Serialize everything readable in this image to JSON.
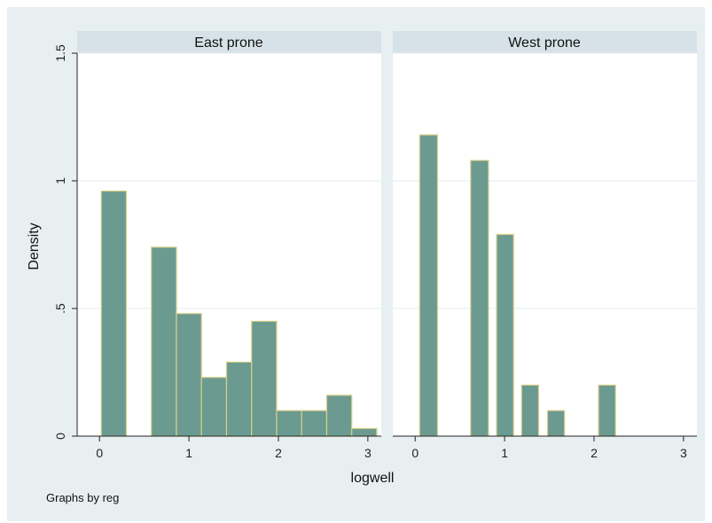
{
  "chart_data": {
    "type": "bar",
    "ylabel": "Density",
    "xlabel": "logwell",
    "note": "Graphs by reg",
    "xlim": [
      -0.25,
      3.15
    ],
    "ylim": [
      0,
      1.5
    ],
    "xticks": [
      "0",
      "1",
      "2",
      "3"
    ],
    "xtick_values": [
      0,
      1,
      2,
      3
    ],
    "yticks": [
      "0",
      ".5",
      "1",
      "1.5"
    ],
    "ytick_values": [
      0,
      0.5,
      1,
      1.5
    ],
    "grid": true,
    "colors": {
      "bar_fill": "#6b9a91",
      "bar_edge": "#d8d08a",
      "outer_bg": "#e8eff1",
      "strip": "#d6e2e8",
      "gridline": "#e6ecee"
    },
    "panels": [
      {
        "title": "East prone",
        "bins": [
          {
            "x0": 0.02,
            "x1": 0.3,
            "density": 0.96
          },
          {
            "x0": 0.58,
            "x1": 0.86,
            "density": 0.74
          },
          {
            "x0": 0.86,
            "x1": 1.14,
            "density": 0.48
          },
          {
            "x0": 1.14,
            "x1": 1.42,
            "density": 0.23
          },
          {
            "x0": 1.42,
            "x1": 1.7,
            "density": 0.29
          },
          {
            "x0": 1.7,
            "x1": 1.98,
            "density": 0.45
          },
          {
            "x0": 1.98,
            "x1": 2.26,
            "density": 0.1
          },
          {
            "x0": 2.26,
            "x1": 2.54,
            "density": 0.1
          },
          {
            "x0": 2.54,
            "x1": 2.82,
            "density": 0.16
          },
          {
            "x0": 2.82,
            "x1": 3.1,
            "density": 0.03
          }
        ]
      },
      {
        "title": "West prone",
        "bins": [
          {
            "x0": 0.05,
            "x1": 0.25,
            "density": 1.18
          },
          {
            "x0": 0.62,
            "x1": 0.82,
            "density": 1.08
          },
          {
            "x0": 0.91,
            "x1": 1.1,
            "density": 0.79
          },
          {
            "x0": 1.19,
            "x1": 1.38,
            "density": 0.2
          },
          {
            "x0": 1.48,
            "x1": 1.67,
            "density": 0.1
          },
          {
            "x0": 2.05,
            "x1": 2.24,
            "density": 0.2
          }
        ]
      }
    ]
  }
}
